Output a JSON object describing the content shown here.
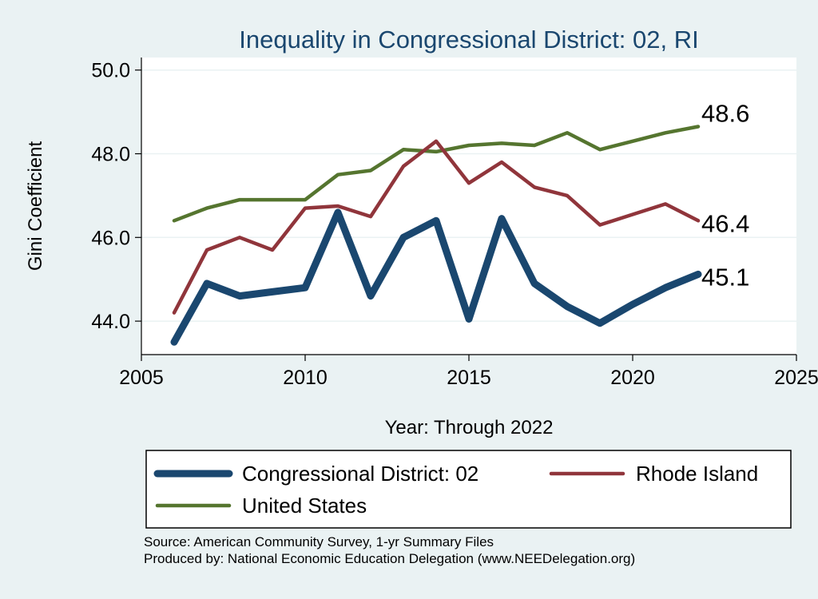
{
  "chart_data": {
    "type": "line",
    "title": "Inequality in Congressional District:  02, RI",
    "xlabel": "Year: Through 2022",
    "ylabel": "Gini Coefficient",
    "xlim": [
      2005,
      2025
    ],
    "ylim": [
      43.2,
      50.3
    ],
    "x_ticks": [
      2005,
      2010,
      2015,
      2020,
      2025
    ],
    "x_tick_labels": [
      "2005",
      "2010",
      "2015",
      "2020",
      "2025"
    ],
    "y_ticks": [
      44,
      46,
      48,
      50
    ],
    "y_tick_labels": [
      "44.0",
      "46.0",
      "48.0",
      "50.0"
    ],
    "grid": true,
    "legend_position": "bottom",
    "series": [
      {
        "name": "Congressional District:  02",
        "color": "#1a476f",
        "x": [
          2006,
          2007,
          2008,
          2009,
          2010,
          2011,
          2012,
          2013,
          2014,
          2015,
          2016,
          2017,
          2018,
          2019,
          2020,
          2021,
          2022
        ],
        "values": [
          43.5,
          44.9,
          44.6,
          44.7,
          44.8,
          46.6,
          44.6,
          46.0,
          46.4,
          44.05,
          46.45,
          44.9,
          44.35,
          43.95,
          44.4,
          44.8,
          45.12
        ],
        "end_label": "45.1"
      },
      {
        "name": "Rhode Island",
        "color": "#90353b",
        "x": [
          2006,
          2007,
          2008,
          2009,
          2010,
          2011,
          2012,
          2013,
          2014,
          2015,
          2016,
          2017,
          2018,
          2019,
          2020,
          2021,
          2022
        ],
        "values": [
          44.2,
          45.7,
          46.0,
          45.7,
          46.7,
          46.75,
          46.5,
          47.7,
          48.3,
          47.3,
          47.8,
          47.2,
          47.0,
          46.3,
          46.55,
          46.8,
          46.4
        ],
        "end_label": "46.4"
      },
      {
        "name": "United States",
        "color": "#55752f",
        "x": [
          2006,
          2007,
          2008,
          2009,
          2010,
          2011,
          2012,
          2013,
          2014,
          2015,
          2016,
          2017,
          2018,
          2019,
          2020,
          2021,
          2022
        ],
        "values": [
          46.4,
          46.7,
          46.9,
          46.9,
          46.9,
          47.5,
          47.6,
          48.1,
          48.05,
          48.2,
          48.25,
          48.2,
          48.5,
          48.1,
          48.3,
          48.5,
          48.65
        ],
        "end_label": "48.6"
      }
    ]
  },
  "footer": {
    "source": "Source: American Community Survey, 1-yr Summary Files",
    "produced_by": "Produced by: National Economic Education Delegation (www.NEEDelegation.org)"
  }
}
